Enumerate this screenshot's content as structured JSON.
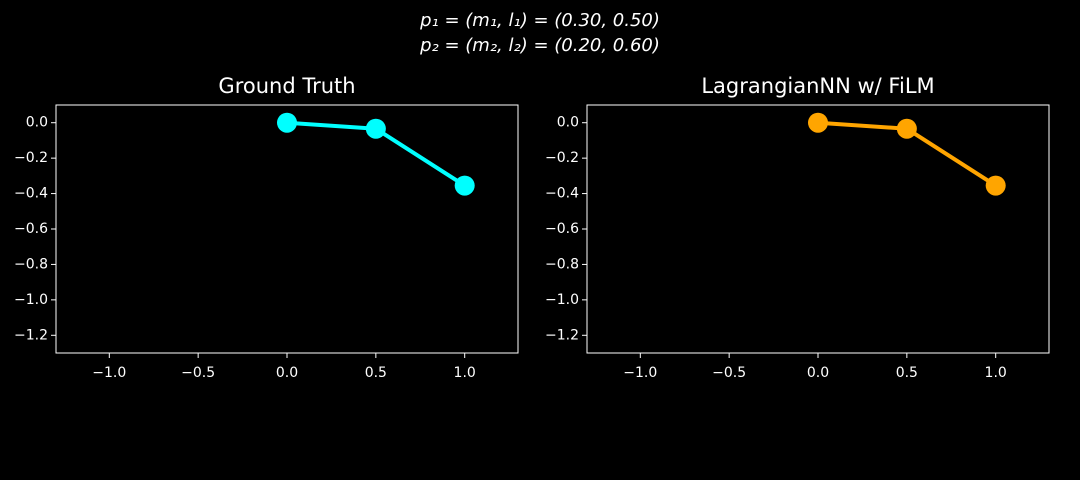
{
  "suptitle": [
    "p₁ = (m₁, l₁) = (0.30, 0.50)",
    "p₂ = (m₂, l₂) = (0.20, 0.60)"
  ],
  "chart_data": [
    {
      "type": "line",
      "title": "Ground Truth",
      "color": "#00ffff",
      "x": [
        0,
        0.5,
        1
      ],
      "values": [
        0,
        -0.034,
        -0.355
      ],
      "xlim": [
        -1.3,
        1.3
      ],
      "ylim": [
        -1.3,
        0.1
      ],
      "xticks": [
        {
          "value": -1,
          "label": "−1.0"
        },
        {
          "value": -0.5,
          "label": "−0.5"
        },
        {
          "value": 0,
          "label": "0.0"
        },
        0.5,
        {
          "value": 1,
          "label": "1.0"
        }
      ],
      "yticks": [
        {
          "value": 0,
          "label": "0.0"
        },
        {
          "value": -0.2,
          "label": "−0.2"
        },
        {
          "value": -0.4,
          "label": "−0.4"
        },
        {
          "value": -0.6,
          "label": "−0.6"
        },
        {
          "value": -0.8,
          "label": "−0.8"
        },
        {
          "value": -1,
          "label": "−1.0"
        },
        {
          "value": -1.2,
          "label": "−1.2"
        }
      ]
    },
    {
      "type": "line",
      "title": "LagrangianNN w/ FiLM",
      "color": "#ffa500",
      "x": [
        0,
        0.5,
        1
      ],
      "values": [
        0,
        -0.034,
        -0.355
      ],
      "xlim": [
        -1.3,
        1.3
      ],
      "ylim": [
        -1.3,
        0.1
      ],
      "xticks": [
        {
          "value": -1,
          "label": "−1.0"
        },
        {
          "value": -0.5,
          "label": "−0.5"
        },
        {
          "value": 0,
          "label": "0.0"
        },
        0.5,
        {
          "value": 1,
          "label": "1.0"
        }
      ],
      "yticks": [
        {
          "value": 0,
          "label": "0.0"
        },
        {
          "value": -0.2,
          "label": "−0.2"
        },
        {
          "value": -0.4,
          "label": "−0.4"
        },
        {
          "value": -0.6,
          "label": "−0.6"
        },
        {
          "value": -0.8,
          "label": "−0.8"
        },
        {
          "value": -1,
          "label": "−1.0"
        },
        {
          "value": -1.2,
          "label": "−1.2"
        }
      ]
    }
  ]
}
